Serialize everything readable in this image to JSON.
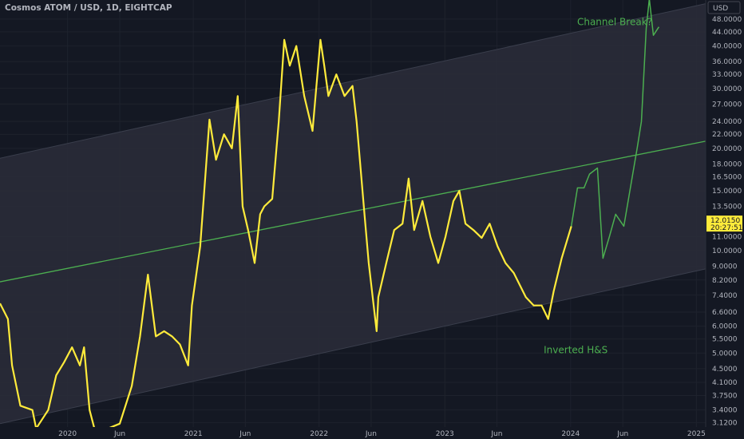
{
  "header": {
    "title": "Cosmos ATOM / USD, 1D, EIGHTCAP"
  },
  "axis": {
    "currency_label": "USD"
  },
  "last_price": {
    "value": "12.0150",
    "countdown": "20:27:51",
    "color": "#ffeb3b"
  },
  "chart_data": {
    "type": "line",
    "title": "Cosmos ATOM / USD, 1D, EIGHTCAP",
    "y_scale": "log",
    "xlim": [
      "2019-06-19",
      "2025-01-28"
    ],
    "ylim": [
      3.03,
      54.6
    ],
    "grid": true,
    "y_ticks": [
      "48.0000",
      "44.0000",
      "40.0000",
      "36.0000",
      "33.0000",
      "30.0000",
      "27.0000",
      "24.0000",
      "22.0000",
      "20.0000",
      "18.0000",
      "16.5000",
      "15.0000",
      "13.5000",
      "11.0000",
      "10.0000",
      "9.0000",
      "8.2000",
      "7.4000",
      "6.6000",
      "6.0000",
      "5.5000",
      "5.0000",
      "4.5000",
      "4.1000",
      "3.7500",
      "3.4000",
      "3.1200"
    ],
    "x_ticks": [
      {
        "label": "2020",
        "date": "2020-01-01"
      },
      {
        "label": "Jun",
        "date": "2020-06-01"
      },
      {
        "label": "2021",
        "date": "2021-01-01"
      },
      {
        "label": "Jun",
        "date": "2021-06-01"
      },
      {
        "label": "2022",
        "date": "2022-01-01"
      },
      {
        "label": "Jun",
        "date": "2022-06-01"
      },
      {
        "label": "2023",
        "date": "2023-01-01"
      },
      {
        "label": "Jun",
        "date": "2023-06-01"
      },
      {
        "label": "2024",
        "date": "2024-01-01"
      },
      {
        "label": "Jun",
        "date": "2024-06-01"
      },
      {
        "label": "2025",
        "date": "2025-01-01"
      }
    ],
    "series": [
      {
        "color": "#ffeb3b",
        "points": [
          [
            "2019-06-19",
            7.0
          ],
          [
            "2019-07-12",
            6.3
          ],
          [
            "2019-07-24",
            4.6
          ],
          [
            "2019-08-17",
            3.5
          ],
          [
            "2019-09-21",
            3.4
          ],
          [
            "2019-10-02",
            3.0
          ],
          [
            "2019-11-06",
            3.4
          ],
          [
            "2019-11-29",
            4.3
          ],
          [
            "2019-12-22",
            4.7
          ],
          [
            "2020-01-14",
            5.2
          ],
          [
            "2020-02-06",
            4.6
          ],
          [
            "2020-02-18",
            5.2
          ],
          [
            "2020-03-05",
            3.4
          ],
          [
            "2020-03-23",
            2.9
          ],
          [
            "2020-06-01",
            3.1
          ],
          [
            "2020-07-06",
            4.0
          ],
          [
            "2020-07-30",
            5.6
          ],
          [
            "2020-08-22",
            8.5
          ],
          [
            "2020-09-14",
            5.6
          ],
          [
            "2020-10-08",
            5.8
          ],
          [
            "2020-10-31",
            5.6
          ],
          [
            "2020-11-23",
            5.3
          ],
          [
            "2020-12-17",
            4.6
          ],
          [
            "2020-12-28",
            6.9
          ],
          [
            "2021-01-21",
            10.3
          ],
          [
            "2021-02-17",
            24.3
          ],
          [
            "2021-03-08",
            18.5
          ],
          [
            "2021-03-31",
            22
          ],
          [
            "2021-04-23",
            20
          ],
          [
            "2021-05-10",
            28.5
          ],
          [
            "2021-05-24",
            13.5
          ],
          [
            "2021-06-09",
            11.5
          ],
          [
            "2021-06-28",
            9.2
          ],
          [
            "2021-07-14",
            12.8
          ],
          [
            "2021-07-26",
            13.5
          ],
          [
            "2021-08-18",
            14.2
          ],
          [
            "2021-09-06",
            24
          ],
          [
            "2021-09-22",
            41.7
          ],
          [
            "2021-10-08",
            35
          ],
          [
            "2021-10-27",
            40
          ],
          [
            "2021-11-19",
            28.5
          ],
          [
            "2021-12-13",
            22.5
          ],
          [
            "2022-01-05",
            41.7
          ],
          [
            "2022-01-16",
            35
          ],
          [
            "2022-01-28",
            28.5
          ],
          [
            "2022-02-20",
            33
          ],
          [
            "2022-03-16",
            28.5
          ],
          [
            "2022-04-08",
            30.5
          ],
          [
            "2022-04-20",
            24
          ],
          [
            "2022-05-13",
            12.7
          ],
          [
            "2022-05-25",
            9.2
          ],
          [
            "2022-06-17",
            5.8
          ],
          [
            "2022-06-22",
            7.3
          ],
          [
            "2022-07-15",
            9.2
          ],
          [
            "2022-08-07",
            11.5
          ],
          [
            "2022-08-31",
            12
          ],
          [
            "2022-09-18",
            16.3
          ],
          [
            "2022-10-04",
            11.5
          ],
          [
            "2022-10-28",
            14
          ],
          [
            "2022-11-20",
            11
          ],
          [
            "2022-12-13",
            9.2
          ],
          [
            "2023-01-03",
            11
          ],
          [
            "2023-01-26",
            14
          ],
          [
            "2023-02-12",
            15
          ],
          [
            "2023-03-02",
            12
          ],
          [
            "2023-03-25",
            11.5
          ],
          [
            "2023-04-18",
            10.9
          ],
          [
            "2023-05-11",
            12
          ],
          [
            "2023-06-03",
            10.3
          ],
          [
            "2023-06-26",
            9.2
          ],
          [
            "2023-07-20",
            8.6
          ],
          [
            "2023-08-24",
            7.3
          ],
          [
            "2023-09-16",
            6.9
          ],
          [
            "2023-10-09",
            6.9
          ],
          [
            "2023-10-28",
            6.3
          ],
          [
            "2023-11-13",
            7.6
          ],
          [
            "2023-12-06",
            9.5
          ],
          [
            "2024-01-03",
            11.8
          ]
        ]
      },
      {
        "color": "#4caf50",
        "points": [
          [
            "2024-01-03",
            11.8
          ],
          [
            "2024-01-21",
            15.3
          ],
          [
            "2024-02-09",
            15.3
          ],
          [
            "2024-02-25",
            16.8
          ],
          [
            "2024-03-19",
            17.5
          ],
          [
            "2024-04-04",
            9.5
          ],
          [
            "2024-04-23",
            11
          ],
          [
            "2024-05-11",
            12.8
          ],
          [
            "2024-06-04",
            11.8
          ],
          [
            "2024-06-20",
            14.7
          ],
          [
            "2024-07-13",
            20.1
          ],
          [
            "2024-07-25",
            24
          ],
          [
            "2024-08-08",
            45
          ],
          [
            "2024-08-17",
            55
          ],
          [
            "2024-08-29",
            43
          ],
          [
            "2024-09-14",
            45.5
          ]
        ]
      }
    ],
    "channel": {
      "upper": [
        [
          "2019-06-19",
          18.7
        ],
        [
          "2025-01-19",
          53
        ]
      ],
      "middle": [
        [
          "2019-06-19",
          8.1
        ],
        [
          "2025-01-19",
          20.9
        ]
      ],
      "lower": [
        [
          "2019-06-19",
          3.1
        ],
        [
          "2025-01-19",
          8.8
        ]
      ],
      "fill_color": "#2a2d3a",
      "middle_color": "#4caf50"
    },
    "annotations": [
      {
        "text": "Channel Break?",
        "date": "2024-01-20",
        "price": 46,
        "color": "#4caf50"
      },
      {
        "text": "Inverted H&S",
        "date": "2023-10-15",
        "price": 5.0,
        "color": "#4caf50"
      }
    ]
  }
}
